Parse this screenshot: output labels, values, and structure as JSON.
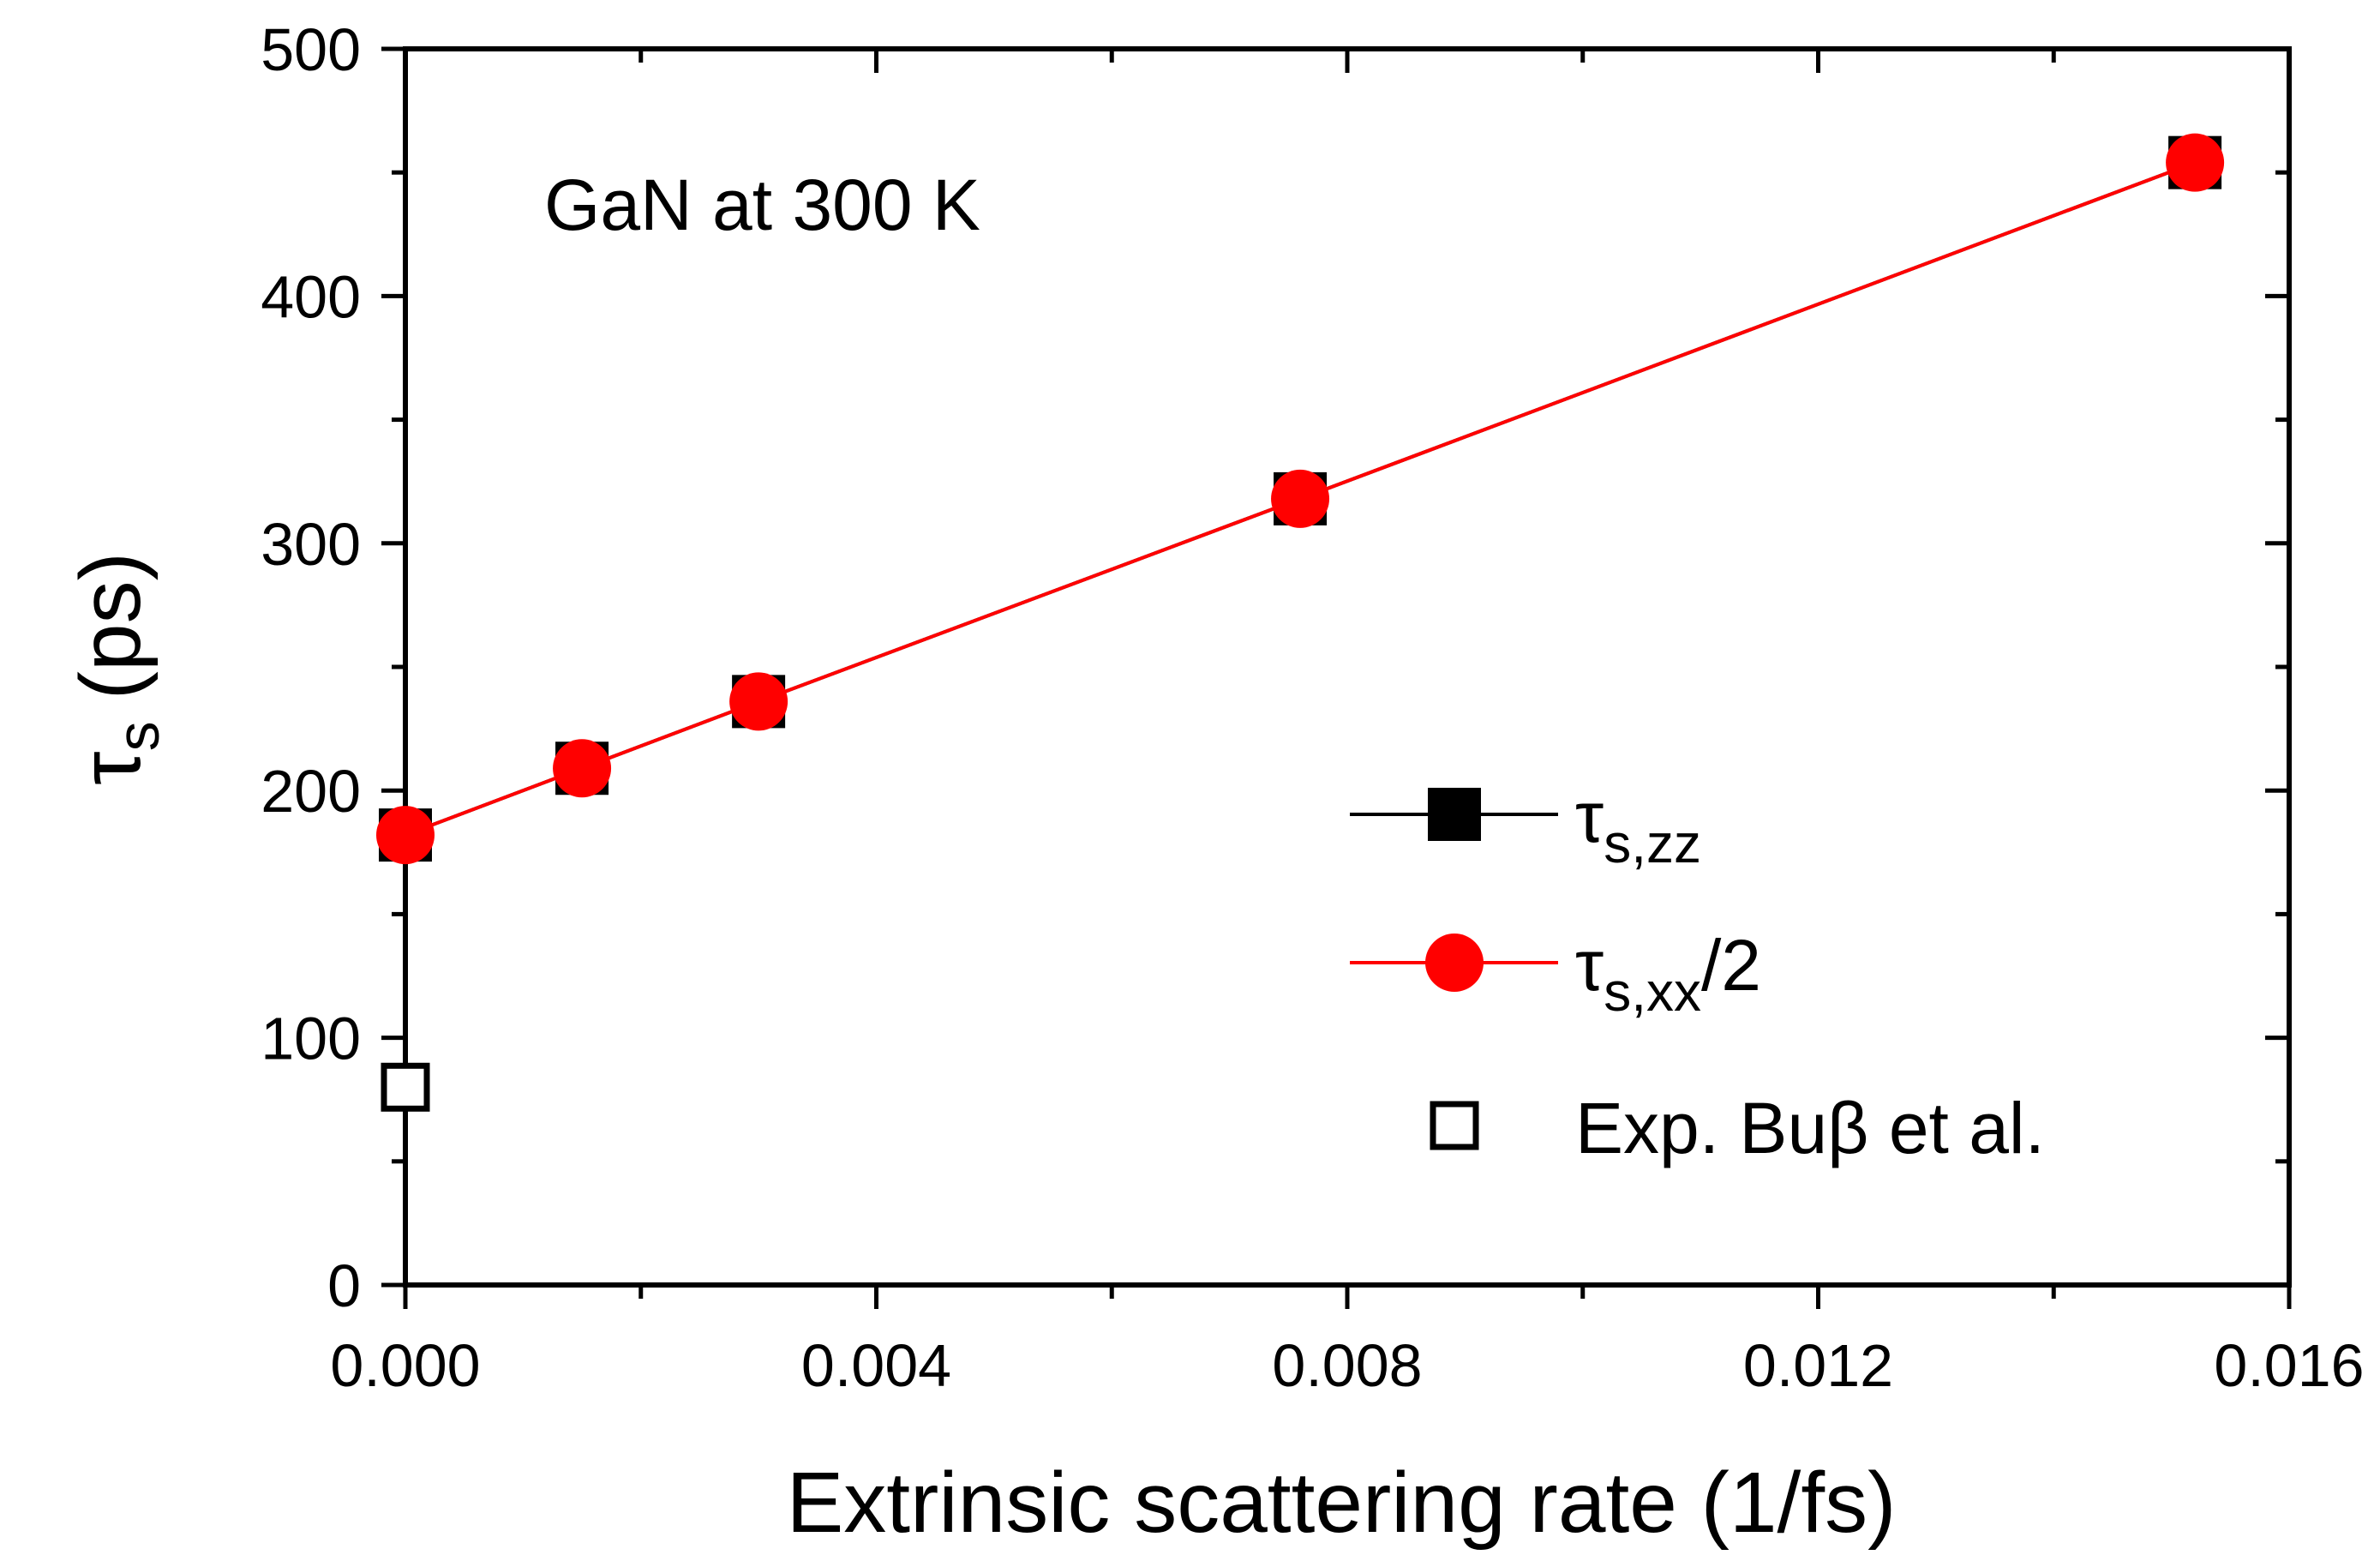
{
  "chart_data": {
    "type": "line",
    "title": "",
    "annotation": "GaN at 300 K",
    "xlabel": "Extrinsic scattering rate (1/fs)",
    "ylabel": {
      "symbol": "τ",
      "sub": "s",
      "unit": "(ps)"
    },
    "xlim": [
      0.0,
      0.016
    ],
    "ylim": [
      0,
      500
    ],
    "xticks": [
      0.0,
      0.004,
      0.008,
      0.012,
      0.016
    ],
    "xtick_labels": [
      "0.000",
      "0.004",
      "0.008",
      "0.012",
      "0.016"
    ],
    "yticks": [
      0,
      100,
      200,
      300,
      400,
      500
    ],
    "ytick_labels": [
      "0",
      "100",
      "200",
      "300",
      "400",
      "500"
    ],
    "grid": false,
    "legend_position": "bottom-right",
    "series": [
      {
        "name": "τs,zz",
        "legend": {
          "base": "τ",
          "sub": "s,zz",
          "suffix": ""
        },
        "marker": "filled-square",
        "color": "#000000",
        "x": [
          0.0,
          0.0015,
          0.003,
          0.0076,
          0.0152
        ],
        "y": [
          182,
          209,
          236,
          318,
          454
        ]
      },
      {
        "name": "τs,xx/2",
        "legend": {
          "base": "τ",
          "sub": "s,xx",
          "suffix": "/2"
        },
        "marker": "filled-circle",
        "color": "#ff0000",
        "x": [
          0.0,
          0.0015,
          0.003,
          0.0076,
          0.0152
        ],
        "y": [
          182,
          209,
          236,
          318,
          454
        ]
      },
      {
        "name": "Exp. Buβ et al.",
        "legend": {
          "base": "Exp. Buβ et al.",
          "sub": "",
          "suffix": ""
        },
        "marker": "open-square",
        "color": "#000000",
        "x": [
          0.0
        ],
        "y": [
          80
        ]
      }
    ]
  }
}
